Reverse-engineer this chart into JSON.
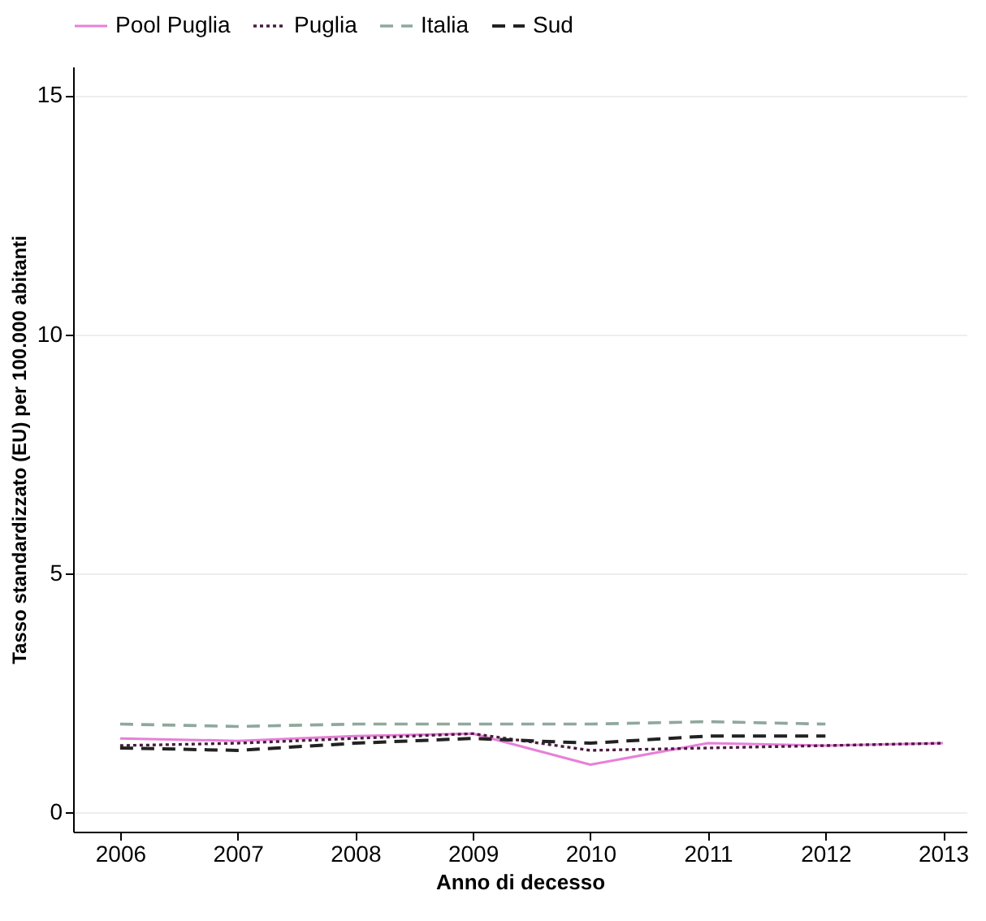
{
  "chart_data": {
    "type": "line",
    "xlabel": "Anno di decesso",
    "ylabel": "Tasso standardizzato (EU) per 100.000 abitanti",
    "x": [
      2006,
      2007,
      2008,
      2009,
      2010,
      2011,
      2012,
      2013
    ],
    "xlim": [
      2005.6,
      2013.2
    ],
    "xticks": [
      2006,
      2007,
      2008,
      2009,
      2010,
      2011,
      2012,
      2013
    ],
    "ylim": [
      -0.4,
      15.6
    ],
    "yticks": [
      0,
      5,
      10,
      15
    ],
    "grid": "y",
    "legend": "top",
    "marker": "none",
    "series": [
      {
        "name": "Pool Puglia",
        "color": "#e87fd8",
        "line_style": "solid",
        "values": [
          1.55,
          1.5,
          1.6,
          1.65,
          1.0,
          1.45,
          1.4,
          1.45
        ]
      },
      {
        "name": "Puglia",
        "color": "#4b1a40",
        "line_style": "dotted",
        "values": [
          1.4,
          1.45,
          1.55,
          1.65,
          1.3,
          1.35,
          1.4,
          1.45
        ]
      },
      {
        "name": "Italia",
        "color": "#8fa89c",
        "line_style": "dashed",
        "values": [
          1.85,
          1.8,
          1.85,
          1.85,
          1.85,
          1.9,
          1.85,
          null
        ]
      },
      {
        "name": "Sud",
        "color": "#222222",
        "line_style": "dashed",
        "values": [
          1.35,
          1.3,
          1.45,
          1.55,
          1.45,
          1.6,
          1.6,
          null
        ]
      }
    ]
  }
}
